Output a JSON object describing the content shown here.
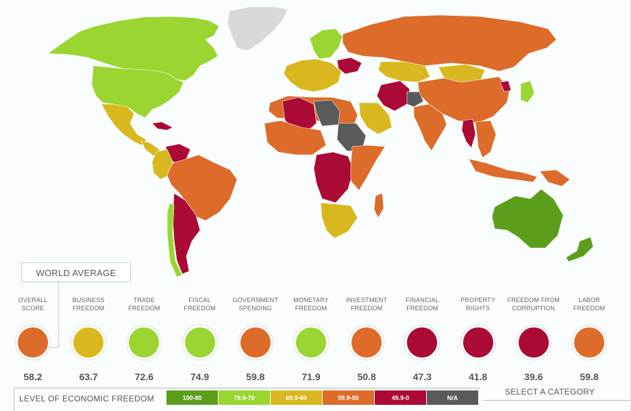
{
  "colors": {
    "c100_80": "#5c9e1c",
    "c79_70": "#9ad532",
    "c69_60": "#d9b81f",
    "c59_50": "#dd6b2a",
    "c49_0": "#aa0a35",
    "na": "#5a5a5a",
    "greenland": "#d8d8d8",
    "ocean": "#f9fdfd"
  },
  "map": {
    "regions": [
      {
        "name": "canada",
        "color": "c79_70"
      },
      {
        "name": "united-states",
        "color": "c79_70"
      },
      {
        "name": "greenland",
        "color": "greenland"
      },
      {
        "name": "mexico",
        "color": "c69_60"
      },
      {
        "name": "central-america",
        "color": "c69_60"
      },
      {
        "name": "cuba",
        "color": "c49_0"
      },
      {
        "name": "venezuela",
        "color": "c49_0"
      },
      {
        "name": "colombia",
        "color": "c69_60"
      },
      {
        "name": "brazil",
        "color": "c59_50"
      },
      {
        "name": "argentina",
        "color": "c49_0"
      },
      {
        "name": "chile",
        "color": "c79_70"
      },
      {
        "name": "western-europe",
        "color": "c69_60"
      },
      {
        "name": "scandinavia",
        "color": "c79_70"
      },
      {
        "name": "russia",
        "color": "c59_50"
      },
      {
        "name": "ukraine",
        "color": "c49_0"
      },
      {
        "name": "kazakhstan",
        "color": "c69_60"
      },
      {
        "name": "mongolia",
        "color": "c69_60"
      },
      {
        "name": "china",
        "color": "c59_50"
      },
      {
        "name": "india",
        "color": "c59_50"
      },
      {
        "name": "iran",
        "color": "c49_0"
      },
      {
        "name": "afghanistan",
        "color": "na"
      },
      {
        "name": "saudi-arabia",
        "color": "c69_60"
      },
      {
        "name": "north-africa",
        "color": "c59_50"
      },
      {
        "name": "algeria",
        "color": "c49_0"
      },
      {
        "name": "libya",
        "color": "na"
      },
      {
        "name": "sudan",
        "color": "na"
      },
      {
        "name": "west-africa",
        "color": "c59_50"
      },
      {
        "name": "central-africa",
        "color": "c49_0"
      },
      {
        "name": "east-africa",
        "color": "c59_50"
      },
      {
        "name": "southern-africa",
        "color": "c69_60"
      },
      {
        "name": "southeast-asia",
        "color": "c59_50"
      },
      {
        "name": "myanmar",
        "color": "c49_0"
      },
      {
        "name": "north-korea",
        "color": "c49_0"
      },
      {
        "name": "japan",
        "color": "c79_70"
      },
      {
        "name": "indonesia",
        "color": "c59_50"
      },
      {
        "name": "papua-new-guinea",
        "color": "c59_50"
      },
      {
        "name": "australia",
        "color": "c100_80"
      },
      {
        "name": "new-zealand",
        "color": "c100_80"
      },
      {
        "name": "madagascar",
        "color": "c59_50"
      }
    ]
  },
  "world_average": {
    "label": "WORLD AVERAGE",
    "categories": [
      {
        "line1": "OVERALL",
        "line2": "SCORE",
        "score": "58.2",
        "color": "c59_50"
      },
      {
        "line1": "BUSINESS",
        "line2": "FREEDOM",
        "score": "63.7",
        "color": "c69_60"
      },
      {
        "line1": "TRADE",
        "line2": "FREEDOM",
        "score": "72.6",
        "color": "c79_70"
      },
      {
        "line1": "FISCAL",
        "line2": "FREEDOM",
        "score": "74.9",
        "color": "c79_70"
      },
      {
        "line1": "GOVERNMENT",
        "line2": "SPENDING",
        "score": "59.8",
        "color": "c59_50"
      },
      {
        "line1": "MONETARY",
        "line2": "FREEDOM",
        "score": "71.9",
        "color": "c79_70"
      },
      {
        "line1": "INVESTMENT",
        "line2": "FREEDOM",
        "score": "50.8",
        "color": "c59_50"
      },
      {
        "line1": "FINANCIAL",
        "line2": "FREEDOM",
        "score": "47.3",
        "color": "c49_0"
      },
      {
        "line1": "PROPERTY",
        "line2": "RIGHTS",
        "score": "41.8",
        "color": "c49_0"
      },
      {
        "line1": "FREEDOM FROM",
        "line2": "CORRUPTION",
        "score": "39.6",
        "color": "c49_0"
      },
      {
        "line1": "LABOR",
        "line2": "FREEDOM",
        "score": "59.8",
        "color": "c59_50"
      }
    ]
  },
  "legend": {
    "title": "LEVEL OF ECONOMIC FREEDOM",
    "items": [
      {
        "label": "100-80",
        "color": "c100_80"
      },
      {
        "label": "79.9-70",
        "color": "c79_70"
      },
      {
        "label": "69.9-60",
        "color": "c69_60"
      },
      {
        "label": "59.9-50",
        "color": "c59_50"
      },
      {
        "label": "49.9-0",
        "color": "c49_0"
      },
      {
        "label": "N/A",
        "color": "na"
      }
    ]
  },
  "select_category": "SELECT A CATEGORY"
}
